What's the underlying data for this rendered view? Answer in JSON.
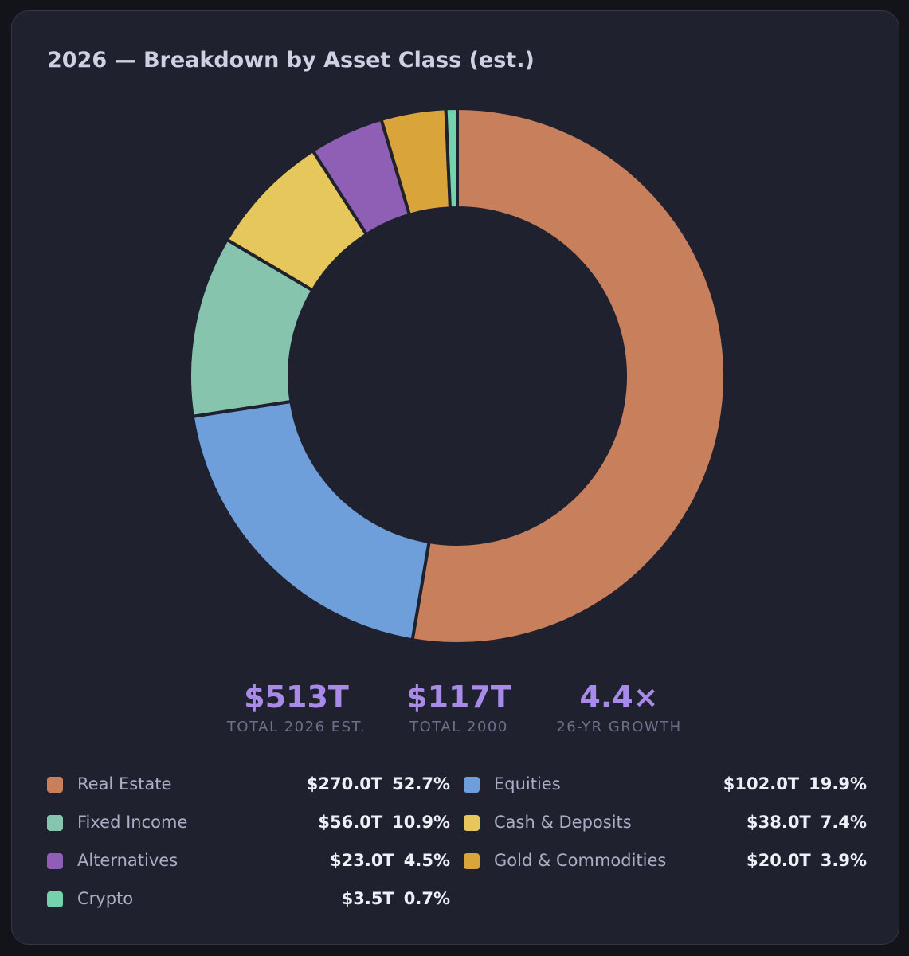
{
  "title": "2026 — Breakdown by Asset Class (est.)",
  "chart_data": {
    "type": "pie",
    "title": "2026 — Breakdown by Asset Class (est.)",
    "unit": "$T",
    "categories": [
      "Real Estate",
      "Equities",
      "Fixed Income",
      "Cash & Deposits",
      "Alternatives",
      "Gold & Commodities",
      "Crypto"
    ],
    "values": [
      270.0,
      102.0,
      56.0,
      38.0,
      23.0,
      20.0,
      3.5
    ],
    "colors": [
      "#c77f5c",
      "#6f9fdb",
      "#86c4ae",
      "#e6c75c",
      "#8e5fb4",
      "#d9a43a",
      "#74d3ad"
    ],
    "legend_placement": "bottom"
  },
  "stats": [
    {
      "value": "$513T",
      "label": "TOTAL 2026 EST."
    },
    {
      "value": "$117T",
      "label": "TOTAL 2000"
    },
    {
      "value": "4.4×",
      "label": "26-YR GROWTH"
    }
  ],
  "legend": [
    {
      "name": "Real Estate",
      "amount": "$270.0T",
      "pct": "52.7%",
      "color": "#c77f5c"
    },
    {
      "name": "Equities",
      "amount": "$102.0T",
      "pct": "19.9%",
      "color": "#6f9fdb"
    },
    {
      "name": "Fixed Income",
      "amount": "$56.0T",
      "pct": "10.9%",
      "color": "#86c4ae"
    },
    {
      "name": "Cash & Deposits",
      "amount": "$38.0T",
      "pct": "7.4%",
      "color": "#e6c75c"
    },
    {
      "name": "Alternatives",
      "amount": "$23.0T",
      "pct": "4.5%",
      "color": "#8e5fb4"
    },
    {
      "name": "Gold & Commodities",
      "amount": "$20.0T",
      "pct": "3.9%",
      "color": "#d9a43a"
    },
    {
      "name": "Crypto",
      "amount": "$3.5T",
      "pct": "0.7%",
      "color": "#74d3ad"
    }
  ]
}
